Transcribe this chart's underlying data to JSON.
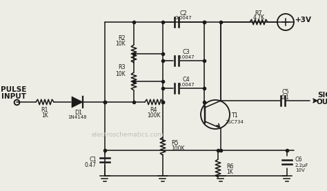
{
  "bg_color": "#eeede5",
  "lc": "#1a1a1a",
  "tc": "#1a1a1a",
  "wm_color": "#bbbbbb",
  "components": {
    "R1": "1K",
    "R2": "10K",
    "R3": "10K",
    "R4": "100K",
    "R5": "100K",
    "R6": "1K",
    "R7": "4.7K",
    "C1": "0.47",
    "C2": "0.0047",
    "C3": "0.0047",
    "C4": "0.0047",
    "C5": "0.1",
    "C6": "2.2μF\n10V",
    "D1": "1N4148",
    "T1": "2SC734",
    "VCC": "+3V"
  }
}
